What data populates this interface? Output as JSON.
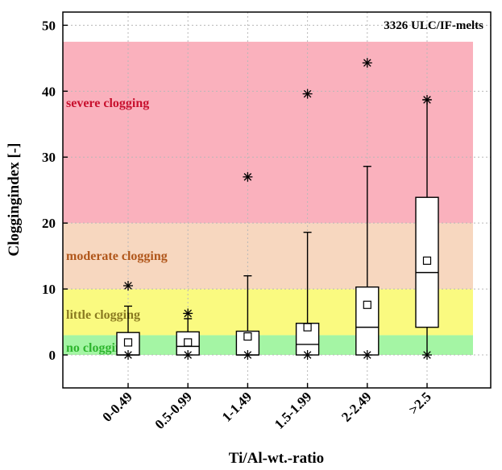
{
  "chart_data": {
    "type": "box",
    "annotation": "3326 ULC/IF-melts",
    "xlabel": "Ti/Al-wt.-ratio",
    "ylabel": "Cloggingindex [-]",
    "ylim": [
      -5,
      52
    ],
    "yticks": [
      0,
      10,
      20,
      30,
      40,
      50
    ],
    "grid": true,
    "categories": [
      "0-0.49",
      "0.5-0.99",
      "1-1.49",
      "1.5-1.99",
      "2-2.49",
      ">2.5"
    ],
    "zones": [
      {
        "label": "no clogging",
        "from": 0,
        "to": 3,
        "color": "#a4f5a4",
        "text_color": "#2db52d"
      },
      {
        "label": "little clogging",
        "from": 3,
        "to": 10,
        "color": "#fafa80",
        "text_color": "#8a7a20"
      },
      {
        "label": "moderate clogging",
        "from": 10,
        "to": 20,
        "color": "#f7d7bf",
        "text_color": "#b0561a"
      },
      {
        "label": "severe clogging",
        "from": 20,
        "to": 47.5,
        "color": "#fab1bd",
        "text_color": "#c8102e"
      }
    ],
    "boxes": [
      {
        "category": "0-0.49",
        "q1": 0,
        "median": 0,
        "q3": 3.4,
        "mean": 1.9,
        "whisker_low": 0,
        "whisker_high": 7.4,
        "extremes": [
          0,
          10.5
        ]
      },
      {
        "category": "0.5-0.99",
        "q1": 0,
        "median": 1.3,
        "q3": 3.5,
        "mean": 1.9,
        "whisker_low": 0,
        "whisker_high": 5.5,
        "extremes": [
          0,
          6.3
        ]
      },
      {
        "category": "1-1.49",
        "q1": 0,
        "median": 0,
        "q3": 3.6,
        "mean": 2.8,
        "whisker_low": 0,
        "whisker_high": 12,
        "extremes": [
          0,
          27
        ]
      },
      {
        "category": "1.5-1.99",
        "q1": 0,
        "median": 1.6,
        "q3": 4.8,
        "mean": 4.2,
        "whisker_low": 0,
        "whisker_high": 18.6,
        "extremes": [
          0,
          39.6
        ]
      },
      {
        "category": "2-2.49",
        "q1": 0,
        "median": 4.2,
        "q3": 10.3,
        "mean": 7.6,
        "whisker_low": 0,
        "whisker_high": 28.6,
        "extremes": [
          0,
          44.3
        ]
      },
      {
        "category": ">2.5",
        "q1": 4.2,
        "median": 12.5,
        "q3": 23.9,
        "mean": 14.3,
        "whisker_low": 0,
        "whisker_high": 38.7,
        "extremes": [
          0,
          38.7
        ]
      }
    ]
  }
}
